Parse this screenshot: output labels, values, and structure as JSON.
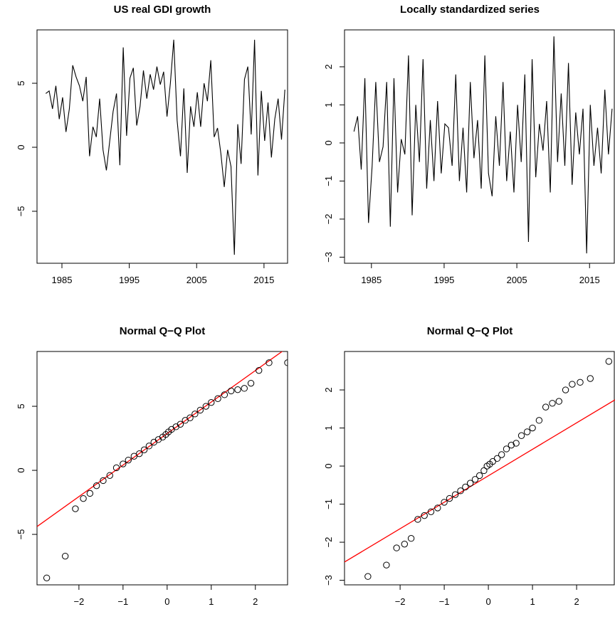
{
  "chart_data": [
    {
      "type": "line",
      "title": "US real GDI growth",
      "color": "#000000",
      "x": [
        1982.6,
        1983.1,
        1983.6,
        1984.1,
        1984.6,
        1985.1,
        1985.6,
        1986.1,
        1986.6,
        1987.1,
        1987.6,
        1988.1,
        1988.6,
        1989.1,
        1989.6,
        1990.1,
        1990.6,
        1991.1,
        1991.6,
        1992.1,
        1992.6,
        1993.1,
        1993.6,
        1994.1,
        1994.6,
        1995.1,
        1995.6,
        1996.1,
        1996.6,
        1997.1,
        1997.6,
        1998.1,
        1998.6,
        1999.1,
        1999.6,
        2000.1,
        2000.6,
        2001.1,
        2001.6,
        2002.1,
        2002.6,
        2003.1,
        2003.6,
        2004.1,
        2004.6,
        2005.1,
        2005.6,
        2006.1,
        2006.6,
        2007.1,
        2007.6,
        2008.1,
        2008.6,
        2009.1,
        2009.6,
        2010.1,
        2010.6,
        2011.1,
        2011.6,
        2012.1,
        2012.6,
        2013.1,
        2013.6,
        2014.1,
        2014.6,
        2015.1,
        2015.6,
        2016.1,
        2016.6,
        2017.1,
        2017.6,
        2018.1
      ],
      "values": [
        4.2,
        4.4,
        3.0,
        4.8,
        2.2,
        3.9,
        1.2,
        3.0,
        6.4,
        5.5,
        4.8,
        3.6,
        5.5,
        -0.7,
        1.6,
        0.8,
        3.8,
        -0.2,
        -1.8,
        0.5,
        2.8,
        4.2,
        -1.4,
        7.8,
        0.9,
        5.4,
        6.2,
        1.7,
        3.2,
        6.0,
        3.8,
        5.7,
        4.5,
        6.3,
        4.9,
        5.9,
        2.4,
        5.0,
        8.4,
        2.1,
        -0.7,
        4.6,
        -2.0,
        3.2,
        1.6,
        4.3,
        1.6,
        5.0,
        3.6,
        6.8,
        0.8,
        1.5,
        -0.5,
        -3.1,
        -0.2,
        -1.5,
        -8.4,
        1.8,
        -1.3,
        5.3,
        6.3,
        1.0,
        8.4,
        -2.2,
        4.4,
        0.5,
        3.5,
        -0.8,
        2.2,
        3.8,
        0.6,
        4.5
      ],
      "xlim": [
        1981.3,
        2018.5
      ],
      "ylim": [
        -9.06,
        9.17
      ],
      "xticks": [
        1985,
        1995,
        2005,
        2015
      ],
      "yticks": [
        {
          "value": -5,
          "label": "−5"
        },
        0,
        5
      ]
    },
    {
      "type": "line",
      "title": "Locally standardized series",
      "color": "#000000",
      "x": [
        1982.6,
        1983.1,
        1983.6,
        1984.1,
        1984.6,
        1985.1,
        1985.6,
        1986.1,
        1986.6,
        1987.1,
        1987.6,
        1988.1,
        1988.6,
        1989.1,
        1989.6,
        1990.1,
        1990.6,
        1991.1,
        1991.6,
        1992.1,
        1992.6,
        1993.1,
        1993.6,
        1994.1,
        1994.6,
        1995.1,
        1995.6,
        1996.1,
        1996.6,
        1997.1,
        1997.6,
        1998.1,
        1998.6,
        1999.1,
        1999.6,
        2000.1,
        2000.6,
        2001.1,
        2001.6,
        2002.1,
        2002.6,
        2003.1,
        2003.6,
        2004.1,
        2004.6,
        2005.1,
        2005.6,
        2006.1,
        2006.6,
        2007.1,
        2007.6,
        2008.1,
        2008.6,
        2009.1,
        2009.6,
        2010.1,
        2010.6,
        2011.1,
        2011.6,
        2012.1,
        2012.6,
        2013.1,
        2013.6,
        2014.1,
        2014.6,
        2015.1,
        2015.6,
        2016.1,
        2016.6,
        2017.1,
        2017.6,
        2018.1
      ],
      "values": [
        0.3,
        0.7,
        -0.7,
        1.7,
        -2.1,
        -0.6,
        1.6,
        -0.5,
        -0.1,
        1.6,
        -2.2,
        1.7,
        -1.3,
        0.1,
        -0.3,
        2.3,
        -1.9,
        1.0,
        -0.5,
        2.2,
        -1.2,
        0.6,
        -1.0,
        1.1,
        -0.8,
        0.5,
        0.4,
        -0.6,
        1.8,
        -1.0,
        0.4,
        -1.3,
        1.6,
        -0.4,
        0.6,
        -1.2,
        2.3,
        -0.8,
        -1.4,
        0.7,
        -0.6,
        1.6,
        -1.0,
        0.3,
        -1.3,
        1.0,
        -0.5,
        1.8,
        -2.6,
        2.2,
        -0.9,
        0.5,
        -0.2,
        1.1,
        -1.3,
        2.8,
        -0.5,
        1.3,
        -0.6,
        2.1,
        -1.1,
        0.8,
        -0.3,
        0.9,
        -2.9,
        1.0,
        -0.6,
        0.4,
        -0.8,
        1.4,
        -0.3,
        0.9
      ],
      "xlim": [
        1981.3,
        2018.5
      ],
      "ylim": [
        -3.16,
        2.97
      ],
      "xticks": [
        1985,
        1995,
        2005,
        2015
      ],
      "yticks": [
        {
          "value": -3,
          "label": "−3"
        },
        {
          "value": -2,
          "label": "−2"
        },
        {
          "value": -1,
          "label": "−1"
        },
        0,
        1,
        2
      ]
    },
    {
      "type": "scatter",
      "title": "Normal Q−Q Plot",
      "color": "#000000",
      "x": [
        -2.73,
        -2.31,
        -2.08,
        -1.9,
        -1.75,
        -1.6,
        -1.45,
        -1.3,
        -1.15,
        -1.0,
        -0.88,
        -0.75,
        -0.63,
        -0.52,
        -0.41,
        -0.3,
        -0.2,
        -0.1,
        -0.03,
        0.03,
        0.1,
        0.2,
        0.3,
        0.41,
        0.52,
        0.63,
        0.75,
        0.88,
        1.0,
        1.15,
        1.3,
        1.45,
        1.6,
        1.75,
        1.9,
        2.08,
        2.31,
        2.73
      ],
      "values": [
        -8.4,
        -6.7,
        -3.0,
        -2.2,
        -1.8,
        -1.2,
        -0.8,
        -0.4,
        0.2,
        0.5,
        0.8,
        1.1,
        1.3,
        1.6,
        1.9,
        2.2,
        2.4,
        2.6,
        2.8,
        3.0,
        3.2,
        3.4,
        3.6,
        3.9,
        4.1,
        4.4,
        4.7,
        5.0,
        5.3,
        5.6,
        5.9,
        6.2,
        6.3,
        6.4,
        6.8,
        7.8,
        8.4,
        8.4
      ],
      "reference_line": {
        "intercept": 2.87,
        "slope": 2.46,
        "color": "#ff0000"
      },
      "xlim": [
        -2.95,
        2.73
      ],
      "ylim": [
        -8.94,
        9.28
      ],
      "xticks": [
        {
          "value": -2,
          "label": "−2"
        },
        {
          "value": -1,
          "label": "−1"
        },
        0,
        1,
        2
      ],
      "yticks": [
        {
          "value": -5,
          "label": "−5"
        },
        0,
        5
      ]
    },
    {
      "type": "scatter",
      "title": "Normal Q−Q Plot",
      "color": "#000000",
      "x": [
        -2.73,
        -2.31,
        -2.08,
        -1.9,
        -1.75,
        -1.6,
        -1.45,
        -1.3,
        -1.15,
        -1.0,
        -0.88,
        -0.75,
        -0.63,
        -0.52,
        -0.41,
        -0.3,
        -0.2,
        -0.1,
        -0.03,
        0.03,
        0.1,
        0.2,
        0.3,
        0.41,
        0.52,
        0.63,
        0.75,
        0.88,
        1.0,
        1.15,
        1.3,
        1.45,
        1.6,
        1.75,
        1.9,
        2.08,
        2.31,
        2.73
      ],
      "values": [
        -2.9,
        -2.6,
        -2.15,
        -2.05,
        -1.9,
        -1.4,
        -1.3,
        -1.2,
        -1.1,
        -0.95,
        -0.85,
        -0.75,
        -0.65,
        -0.55,
        -0.45,
        -0.35,
        -0.25,
        -0.12,
        0.0,
        0.05,
        0.12,
        0.2,
        0.3,
        0.45,
        0.55,
        0.6,
        0.8,
        0.9,
        1.0,
        1.2,
        1.55,
        1.65,
        1.7,
        2.0,
        2.15,
        2.2,
        2.3,
        2.75
      ],
      "reference_line": {
        "intercept": -0.255,
        "slope": 0.695,
        "color": "#ff0000"
      },
      "xlim": [
        -3.26,
        2.87
      ],
      "ylim": [
        -3.12,
        3.01
      ],
      "xticks": [
        {
          "value": -2,
          "label": "−2"
        },
        {
          "value": -1,
          "label": "−1"
        },
        0,
        1,
        2
      ],
      "yticks": [
        {
          "value": -3,
          "label": "−3"
        },
        {
          "value": -2,
          "label": "−2"
        },
        {
          "value": -1,
          "label": "−1"
        },
        0,
        1,
        2
      ]
    }
  ]
}
